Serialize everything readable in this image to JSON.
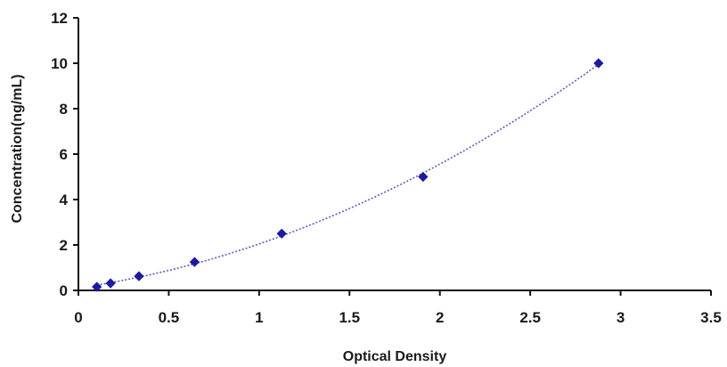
{
  "chart_data": {
    "type": "scatter",
    "title": "",
    "xlabel": "Optical Density",
    "ylabel": "Concentration(ng/mL)",
    "xlim": [
      0,
      3.5
    ],
    "ylim": [
      0,
      12
    ],
    "x_ticks": [
      "0",
      "0.5",
      "1",
      "1.5",
      "2",
      "2.5",
      "3",
      "3.5"
    ],
    "y_ticks": [
      "0",
      "2",
      "4",
      "6",
      "8",
      "10",
      "12"
    ],
    "grid": false,
    "legend": "none",
    "series": [
      {
        "x": [
          0.102,
          0.178,
          0.335,
          0.643,
          1.125,
          1.907,
          2.878
        ],
        "y": [
          0.156,
          0.312,
          0.625,
          1.25,
          2.5,
          5,
          10
        ],
        "marker_color": "#1a1aa6",
        "line_color": "#5a5ad0",
        "line_style": "dotted",
        "trendline": true
      }
    ]
  }
}
